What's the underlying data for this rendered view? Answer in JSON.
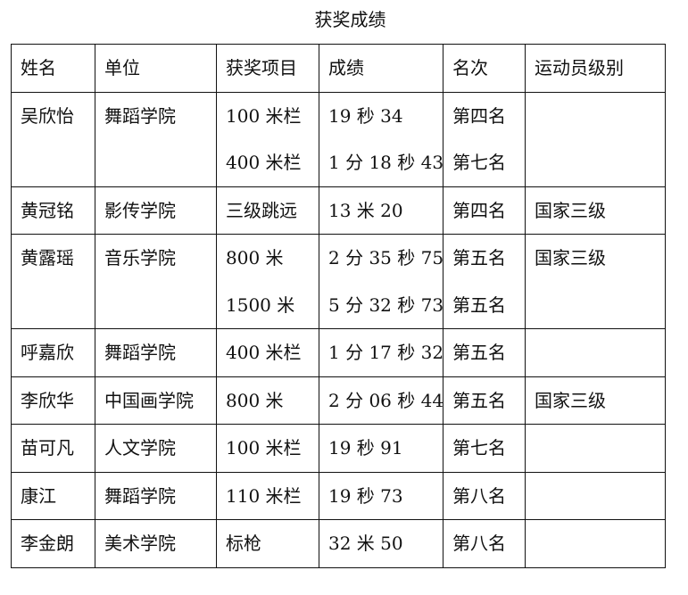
{
  "title": "获奖成绩",
  "table": {
    "headers": [
      "姓名",
      "单位",
      "获奖项目",
      "成绩",
      "名次",
      "运动员级别"
    ],
    "rows": [
      {
        "name": "吴欣怡",
        "unit": "舞蹈学院",
        "events": [
          "100 米栏",
          "400 米栏"
        ],
        "results": [
          "19 秒 34",
          "1 分 18 秒 43"
        ],
        "ranks": [
          "第四名",
          "第七名"
        ],
        "level": ""
      },
      {
        "name": "黄冠铭",
        "unit": "影传学院",
        "events": [
          "三级跳远"
        ],
        "results": [
          "13 米 20"
        ],
        "ranks": [
          "第四名"
        ],
        "level": "国家三级"
      },
      {
        "name": "黄露瑶",
        "unit": "音乐学院",
        "events": [
          "800 米",
          "1500 米"
        ],
        "results": [
          "2 分 35 秒 75",
          "5 分 32 秒 73"
        ],
        "ranks": [
          "第五名",
          "第五名"
        ],
        "level": "国家三级"
      },
      {
        "name": "呼嘉欣",
        "unit": "舞蹈学院",
        "events": [
          "400 米栏"
        ],
        "results": [
          "1 分 17 秒 32"
        ],
        "ranks": [
          "第五名"
        ],
        "level": ""
      },
      {
        "name": "李欣华",
        "unit": "中国画学院",
        "events": [
          "800 米"
        ],
        "results": [
          "2 分 06 秒 44"
        ],
        "ranks": [
          "第五名"
        ],
        "level": "国家三级"
      },
      {
        "name": "苗可凡",
        "unit": "人文学院",
        "events": [
          "100 米栏"
        ],
        "results": [
          "19 秒 91"
        ],
        "ranks": [
          "第七名"
        ],
        "level": ""
      },
      {
        "name": "康江",
        "unit": "舞蹈学院",
        "events": [
          "110 米栏"
        ],
        "results": [
          "19 秒 73"
        ],
        "ranks": [
          "第八名"
        ],
        "level": ""
      },
      {
        "name": "李金朗",
        "unit": "美术学院",
        "events": [
          "标枪"
        ],
        "results": [
          "32 米 50"
        ],
        "ranks": [
          "第八名"
        ],
        "level": ""
      }
    ]
  }
}
